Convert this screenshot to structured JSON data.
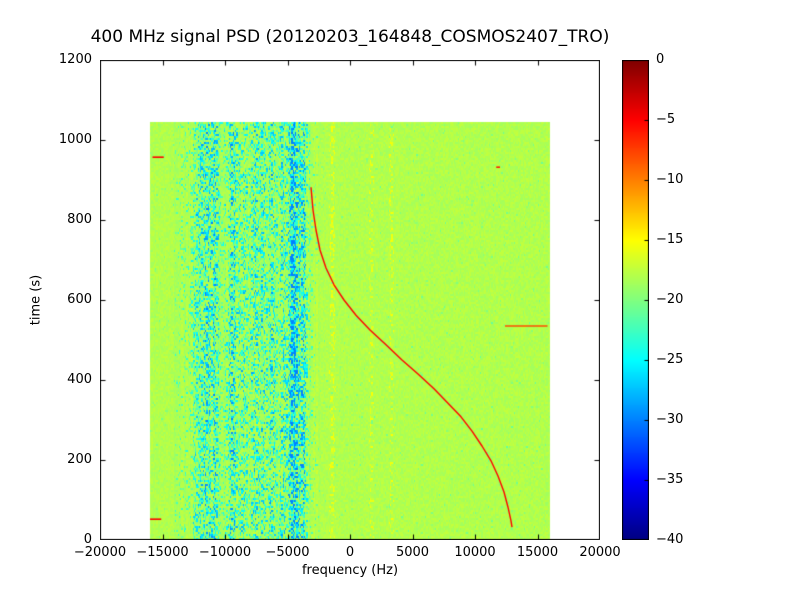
{
  "chart_data": {
    "type": "heatmap",
    "title": "400 MHz signal PSD (20120203_164848_COSMOS2407_TRO)",
    "xlabel": "frequency (Hz)",
    "ylabel": "time (s)",
    "xlim": [
      -20000,
      20000
    ],
    "ylim": [
      0,
      1200
    ],
    "x_tick_values": [
      -20000,
      -15000,
      -10000,
      -5000,
      0,
      5000,
      10000,
      15000,
      20000
    ],
    "x_tick_labels": [
      "−20000",
      "−15000",
      "−10000",
      "−5000",
      "0",
      "5000",
      "10000",
      "15000",
      "20000"
    ],
    "y_tick_values": [
      0,
      200,
      400,
      600,
      800,
      1000,
      1200
    ],
    "y_tick_labels": [
      "0",
      "200",
      "400",
      "600",
      "800",
      "1000",
      "1200"
    ],
    "colormap": "jet",
    "colorbar": {
      "vmin": -40,
      "vmax": 0,
      "tick_values": [
        0,
        -5,
        -10,
        -15,
        -20,
        -25,
        -30,
        -35,
        -40
      ],
      "tick_labels": [
        "0",
        "−5",
        "−10",
        "−15",
        "−20",
        "−25",
        "−30",
        "−35",
        "−40"
      ]
    },
    "data_extent": {
      "freq_hz": [
        -16000,
        16000
      ],
      "time_s": [
        0,
        1045
      ]
    },
    "background_value_db": -18,
    "noise_band": {
      "freq_range_hz": [
        -13500,
        -3100
      ],
      "base_intensity": 0.18,
      "stripes": [
        {
          "center_hz": -12300,
          "sigma_hz": 250,
          "strength": 0.3
        },
        {
          "center_hz": -11500,
          "sigma_hz": 350,
          "strength": 0.5
        },
        {
          "center_hz": -10800,
          "sigma_hz": 250,
          "strength": 0.45
        },
        {
          "center_hz": -9400,
          "sigma_hz": 350,
          "strength": 0.5
        },
        {
          "center_hz": -8500,
          "sigma_hz": 250,
          "strength": 0.35
        },
        {
          "center_hz": -7600,
          "sigma_hz": 300,
          "strength": 0.45
        },
        {
          "center_hz": -6900,
          "sigma_hz": 200,
          "strength": 0.35
        },
        {
          "center_hz": -6200,
          "sigma_hz": 250,
          "strength": 0.45
        },
        {
          "center_hz": -5400,
          "sigma_hz": 200,
          "strength": 0.4
        },
        {
          "center_hz": -4500,
          "sigma_hz": 350,
          "strength": 0.85
        },
        {
          "center_hz": -3700,
          "sigma_hz": 200,
          "strength": 0.5
        }
      ],
      "light_stripes": [
        {
          "center_hz": -1400,
          "sigma_hz": 120,
          "strength": 0.5
        },
        {
          "center_hz": 1700,
          "sigma_hz": 100,
          "strength": 0.35
        },
        {
          "center_hz": 3300,
          "sigma_hz": 100,
          "strength": 0.3
        }
      ]
    },
    "doppler_track": {
      "value_db": -5,
      "points_time_freq": [
        [
          882,
          -3120
        ],
        [
          825,
          -2960
        ],
        [
          775,
          -2720
        ],
        [
          725,
          -2400
        ],
        [
          680,
          -1920
        ],
        [
          638,
          -1280
        ],
        [
          600,
          -480
        ],
        [
          562,
          480
        ],
        [
          525,
          1600
        ],
        [
          488,
          2880
        ],
        [
          450,
          4160
        ],
        [
          415,
          5440
        ],
        [
          378,
          6720
        ],
        [
          342,
          7840
        ],
        [
          308,
          8880
        ],
        [
          272,
          9760
        ],
        [
          235,
          10560
        ],
        [
          198,
          11280
        ],
        [
          160,
          11840
        ],
        [
          120,
          12320
        ],
        [
          82,
          12640
        ],
        [
          48,
          12880
        ],
        [
          32,
          12960
        ]
      ]
    },
    "artifacts": [
      {
        "time_s": 957,
        "freq_range_hz": [
          -15800,
          -14900
        ],
        "value_db": -5
      },
      {
        "time_s": 52,
        "freq_range_hz": [
          -16000,
          -15100
        ],
        "value_db": -5
      },
      {
        "time_s": 535,
        "freq_range_hz": [
          12400,
          15800
        ],
        "value_db": -8
      },
      {
        "time_s": 932,
        "freq_range_hz": [
          11700,
          12000
        ],
        "value_db": -6
      }
    ],
    "colors": {
      "background": "#ffffff",
      "axes": "#000000"
    }
  }
}
